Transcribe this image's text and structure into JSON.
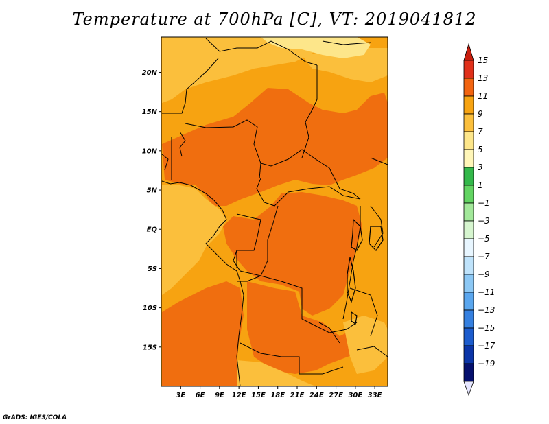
{
  "title": "Temperature at 700hPa [C], VT: 2019041812",
  "credit": "GrADS: IGES/COLA",
  "map": {
    "lat_labels": [
      "20N",
      "15N",
      "10N",
      "5N",
      "EQ",
      "5S",
      "10S",
      "15S"
    ],
    "lon_labels": [
      "3E",
      "6E",
      "9E",
      "12E",
      "15E",
      "18E",
      "21E",
      "24E",
      "27E",
      "30E",
      "33E"
    ],
    "lat_values": [
      20,
      15,
      10,
      5,
      0,
      -5,
      -10,
      -15
    ],
    "lon_values": [
      3,
      6,
      9,
      12,
      15,
      18,
      21,
      24,
      27,
      30,
      33
    ],
    "lat_range": [
      -20,
      24.5
    ],
    "lon_range": [
      0,
      35
    ],
    "colors": {
      "band_5_7": "#fde68a",
      "band_7_9": "#fbbf3c",
      "band_9_11": "#f7a311",
      "band_11_13": "#f06e0f"
    }
  },
  "colorbar": {
    "labels": [
      "15",
      "13",
      "11",
      "9",
      "7",
      "5",
      "3",
      "1",
      "−1",
      "−3",
      "−5",
      "−7",
      "−9",
      "−11",
      "−13",
      "−15",
      "−17",
      "−19"
    ],
    "colors": [
      "#e0301a",
      "#f26410",
      "#f7a311",
      "#fbbf3c",
      "#fde68a",
      "#fff6b8",
      "#33b84a",
      "#62d462",
      "#a2e89a",
      "#d6f5cf",
      "#e8f6ff",
      "#bfe3fb",
      "#8cc8f5",
      "#5aa6ee",
      "#3580e0",
      "#1c5ccd",
      "#0b35a8",
      "#05106e"
    ],
    "top_arrow_color": "#c81e0e",
    "bottom_arrow_color": "#e6e6ff"
  }
}
